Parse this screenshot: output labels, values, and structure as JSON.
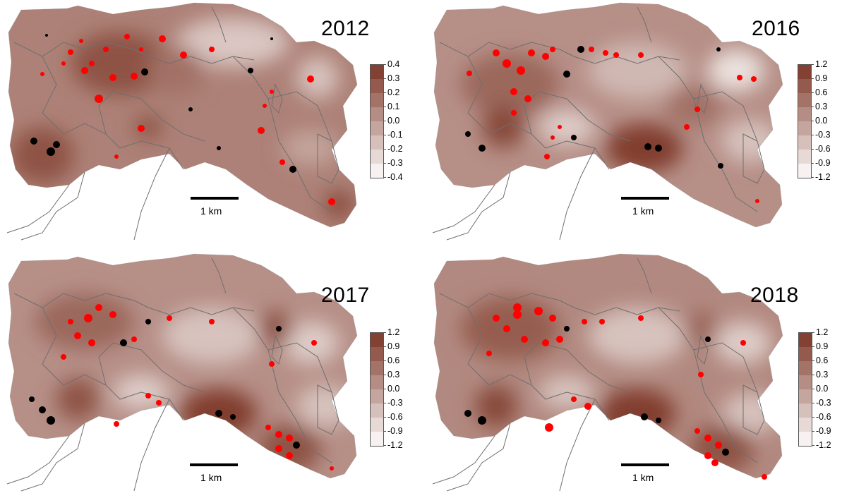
{
  "colors": {
    "low": "#ffffff",
    "high": "#7a3424",
    "positive_point": "#ff0000",
    "negative_point": "#000000",
    "boundary_line": "#6f6f6f"
  },
  "scale_bar": {
    "label": "1 km"
  },
  "panels": [
    {
      "year": "2012",
      "legend_ticks": [
        "0.4",
        "0.3",
        "0.2",
        "0.1",
        "0.0",
        "-0.1",
        "-0.2",
        "-0.3",
        "-0.4"
      ]
    },
    {
      "year": "2016",
      "legend_ticks": [
        "1.2",
        "0.9",
        "0.6",
        "0.3",
        "0.0",
        "-0.3",
        "-0.6",
        "-0.9",
        "-1.2"
      ]
    },
    {
      "year": "2017",
      "legend_ticks": [
        "1.2",
        "0.9",
        "0.6",
        "0.3",
        "0.0",
        "-0.3",
        "-0.6",
        "-0.9",
        "-1.2"
      ]
    },
    {
      "year": "2018",
      "legend_ticks": [
        "1.2",
        "0.9",
        "0.6",
        "0.3",
        "0.0",
        "-0.3",
        "-0.6",
        "-0.9",
        "-1.2"
      ]
    }
  ]
}
